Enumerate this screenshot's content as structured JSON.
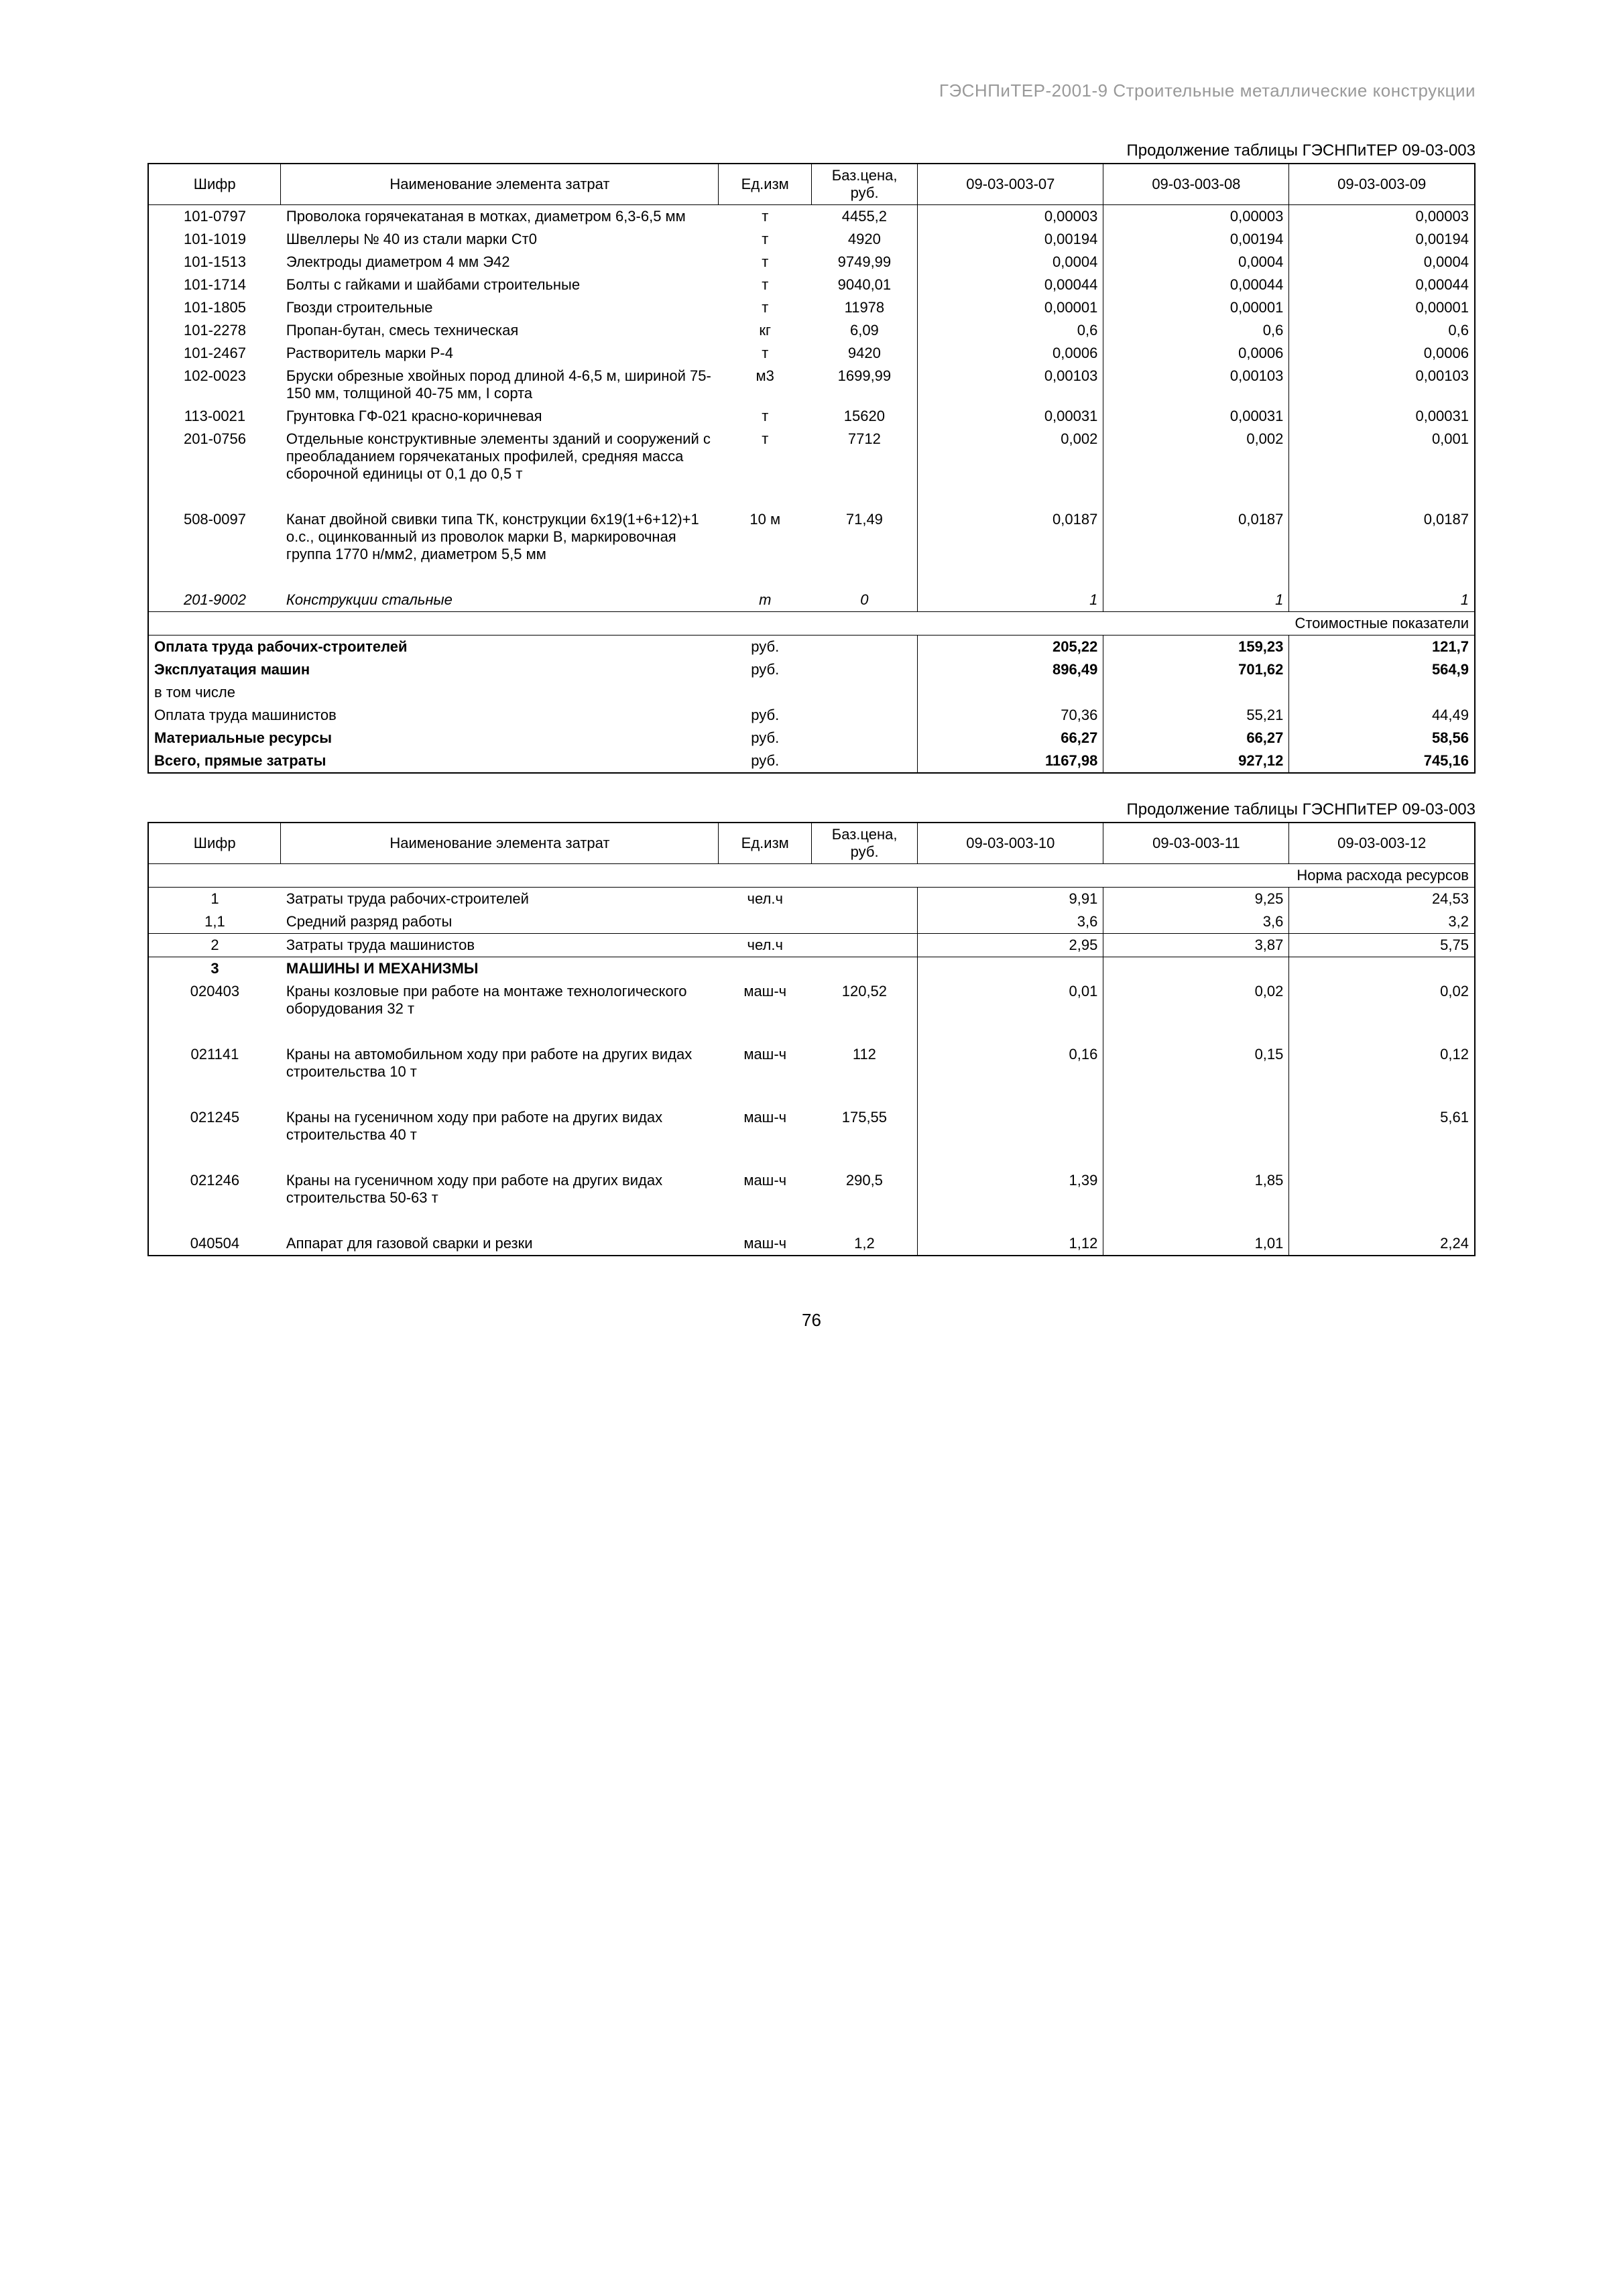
{
  "header": "ГЭСНПиТЕР-2001-9 Строительные металлические конструкции",
  "page_number": "76",
  "table1": {
    "continuation": "Продолжение таблицы ГЭСНПиТЕР 09-03-003",
    "columns": {
      "code": "Шифр",
      "name": "Наименование элемента затрат",
      "unit": "Ед.изм",
      "price": "Баз.цена, руб.",
      "v1": "09-03-003-07",
      "v2": "09-03-003-08",
      "v3": "09-03-003-09"
    },
    "cost_banner": "Стоимостные показатели",
    "rows": [
      {
        "code": "101-0797",
        "name": "Проволока горячекатаная в мотках, диаметром 6,3-6,5 мм",
        "unit": "т",
        "price": "4455,2",
        "v1": "0,00003",
        "v2": "0,00003",
        "v3": "0,00003",
        "top": true
      },
      {
        "code": "101-1019",
        "name": "Швеллеры № 40 из стали марки Ст0",
        "unit": "т",
        "price": "4920",
        "v1": "0,00194",
        "v2": "0,00194",
        "v3": "0,00194"
      },
      {
        "code": "101-1513",
        "name": "Электроды диаметром 4 мм Э42",
        "unit": "т",
        "price": "9749,99",
        "v1": "0,0004",
        "v2": "0,0004",
        "v3": "0,0004"
      },
      {
        "code": "101-1714",
        "name": "Болты с гайками и шайбами строительные",
        "unit": "т",
        "price": "9040,01",
        "v1": "0,00044",
        "v2": "0,00044",
        "v3": "0,00044"
      },
      {
        "code": "101-1805",
        "name": "Гвозди строительные",
        "unit": "т",
        "price": "11978",
        "v1": "0,00001",
        "v2": "0,00001",
        "v3": "0,00001"
      },
      {
        "code": "101-2278",
        "name": "Пропан-бутан, смесь техническая",
        "unit": "кг",
        "price": "6,09",
        "v1": "0,6",
        "v2": "0,6",
        "v3": "0,6"
      },
      {
        "code": "101-2467",
        "name": "Растворитель марки Р-4",
        "unit": "т",
        "price": "9420",
        "v1": "0,0006",
        "v2": "0,0006",
        "v3": "0,0006"
      },
      {
        "code": "102-0023",
        "name": "Бруски обрезные хвойных пород длиной 4-6,5 м, шириной 75-150 мм, толщиной 40-75 мм, I сорта",
        "unit": "м3",
        "price": "1699,99",
        "v1": "0,00103",
        "v2": "0,00103",
        "v3": "0,00103"
      },
      {
        "code": "113-0021",
        "name": "Грунтовка ГФ-021 красно-коричневая",
        "unit": "т",
        "price": "15620",
        "v1": "0,00031",
        "v2": "0,00031",
        "v3": "0,00031"
      },
      {
        "code": "201-0756",
        "name": "Отдельные конструктивные элементы зданий и сооружений с преобладанием горячекатаных профилей, средняя масса сборочной единицы от 0,1 до 0,5 т",
        "unit": "т",
        "price": "7712",
        "v1": "0,002",
        "v2": "0,002",
        "v3": "0,001"
      },
      {
        "code": "",
        "name": "",
        "unit": "",
        "price": "",
        "v1": "",
        "v2": "",
        "v3": "",
        "spacer": true
      },
      {
        "code": "508-0097",
        "name": "Канат двойной свивки типа ТК, конструкции 6х19(1+6+12)+1 о.с., оцинкованный из проволок марки В, маркировочная группа 1770 н/мм2, диаметром 5,5 мм",
        "unit": "10 м",
        "price": "71,49",
        "v1": "0,0187",
        "v2": "0,0187",
        "v3": "0,0187"
      },
      {
        "code": "",
        "name": "",
        "unit": "",
        "price": "",
        "v1": "",
        "v2": "",
        "v3": "",
        "spacer": true
      },
      {
        "code": "201-9002",
        "name": "Конструкции стальные",
        "unit": "т",
        "price": "0",
        "v1": "1",
        "v2": "1",
        "v3": "1",
        "italic": true
      }
    ],
    "summary": [
      {
        "label": "Оплата труда рабочих-строителей",
        "unit": "руб.",
        "v1": "205,22",
        "v2": "159,23",
        "v3": "121,7",
        "bold": true,
        "top": true
      },
      {
        "label": "Эксплуатация машин",
        "unit": "руб.",
        "v1": "896,49",
        "v2": "701,62",
        "v3": "564,9",
        "bold": true
      },
      {
        "label": "в том числе",
        "unit": "",
        "v1": "",
        "v2": "",
        "v3": ""
      },
      {
        "label": "Оплата труда машинистов",
        "unit": "руб.",
        "v1": "70,36",
        "v2": "55,21",
        "v3": "44,49"
      },
      {
        "label": "Материальные ресурсы",
        "unit": "руб.",
        "v1": "66,27",
        "v2": "66,27",
        "v3": "58,56",
        "bold": true
      },
      {
        "label": "Всего, прямые затраты",
        "unit": "руб.",
        "v1": "1167,98",
        "v2": "927,12",
        "v3": "745,16",
        "bold": true,
        "bot": true
      }
    ]
  },
  "table2": {
    "continuation": "Продолжение таблицы ГЭСНПиТЕР 09-03-003",
    "columns": {
      "code": "Шифр",
      "name": "Наименование элемента затрат",
      "unit": "Ед.изм",
      "price": "Баз.цена, руб.",
      "v1": "09-03-003-10",
      "v2": "09-03-003-11",
      "v3": "09-03-003-12"
    },
    "norm_banner": "Норма расхода ресурсов",
    "rows": [
      {
        "code": "1",
        "name": "Затраты труда рабочих-строителей",
        "unit": "чел.ч",
        "price": "",
        "v1": "9,91",
        "v2": "9,25",
        "v3": "24,53",
        "top": true
      },
      {
        "code": "1,1",
        "name": "Средний разряд работы",
        "unit": "",
        "price": "",
        "v1": "3,6",
        "v2": "3,6",
        "v3": "3,2"
      },
      {
        "code": "2",
        "name": "Затраты труда машинистов",
        "unit": "чел.ч",
        "price": "",
        "v1": "2,95",
        "v2": "3,87",
        "v3": "5,75",
        "top": true
      },
      {
        "code": "3",
        "name": "МАШИНЫ И МЕХАНИЗМЫ",
        "unit": "",
        "price": "",
        "v1": "",
        "v2": "",
        "v3": "",
        "bold": true,
        "top": true
      },
      {
        "code": "020403",
        "name": "Краны козловые при работе на монтаже технологического оборудования 32 т",
        "unit": "маш-ч",
        "price": "120,52",
        "v1": "0,01",
        "v2": "0,02",
        "v3": "0,02"
      },
      {
        "code": "",
        "name": "",
        "unit": "",
        "price": "",
        "v1": "",
        "v2": "",
        "v3": "",
        "spacer": true
      },
      {
        "code": "021141",
        "name": "Краны на автомобильном ходу при работе на других видах строительства 10 т",
        "unit": "маш-ч",
        "price": "112",
        "v1": "0,16",
        "v2": "0,15",
        "v3": "0,12"
      },
      {
        "code": "",
        "name": "",
        "unit": "",
        "price": "",
        "v1": "",
        "v2": "",
        "v3": "",
        "spacer": true
      },
      {
        "code": "021245",
        "name": "Краны на гусеничном ходу при работе на других видах строительства 40 т",
        "unit": "маш-ч",
        "price": "175,55",
        "v1": "",
        "v2": "",
        "v3": "5,61"
      },
      {
        "code": "",
        "name": "",
        "unit": "",
        "price": "",
        "v1": "",
        "v2": "",
        "v3": "",
        "spacer": true
      },
      {
        "code": "021246",
        "name": "Краны на гусеничном ходу при работе на других видах строительства 50-63 т",
        "unit": "маш-ч",
        "price": "290,5",
        "v1": "1,39",
        "v2": "1,85",
        "v3": ""
      },
      {
        "code": "",
        "name": "",
        "unit": "",
        "price": "",
        "v1": "",
        "v2": "",
        "v3": "",
        "spacer": true
      },
      {
        "code": "040504",
        "name": "Аппарат для газовой сварки и резки",
        "unit": "маш-ч",
        "price": "1,2",
        "v1": "1,12",
        "v2": "1,01",
        "v3": "2,24",
        "bot": true
      }
    ]
  }
}
